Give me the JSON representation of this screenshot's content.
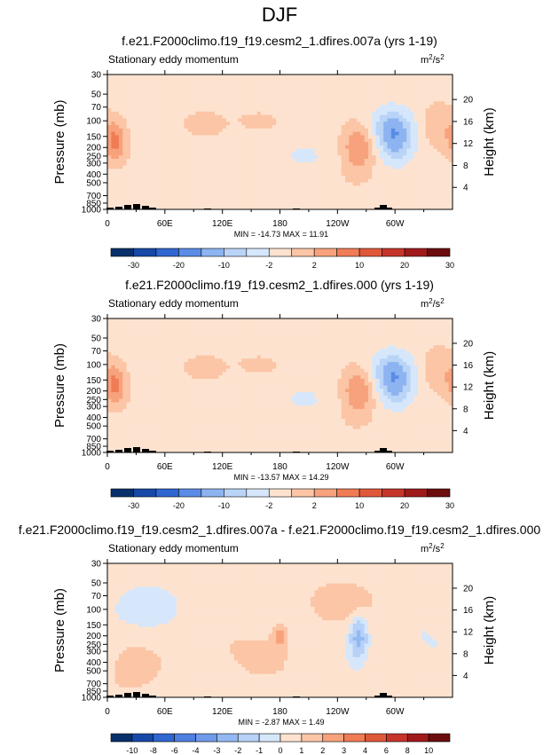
{
  "page_title": "DJF",
  "colorbars": {
    "main": {
      "labels": [
        "-30",
        "-20",
        "-10",
        "-2",
        "2",
        "10",
        "20",
        "30"
      ],
      "colors": [
        "#08306b",
        "#1748a8",
        "#2f66cf",
        "#5a8ce6",
        "#8db4f0",
        "#b9d4f6",
        "#d6e7fb",
        "#fde3cf",
        "#fbc5a6",
        "#f7a27c",
        "#ef7c55",
        "#e0583a",
        "#c6352a",
        "#a01a1c",
        "#6b0d0e"
      ]
    },
    "diff": {
      "labels": [
        "-10",
        "-8",
        "-6",
        "-4",
        "-3",
        "-2",
        "-1",
        "0",
        "1",
        "2",
        "3",
        "4",
        "6",
        "8",
        "10"
      ],
      "colors": [
        "#08306b",
        "#1748a8",
        "#2f66cf",
        "#4f7fe0",
        "#6f9aea",
        "#93b8f2",
        "#b7d1f7",
        "#d6e7fb",
        "#fde3cf",
        "#fbc5a6",
        "#f7a27c",
        "#ef7c55",
        "#e0583a",
        "#c6352a",
        "#a01a1c",
        "#6b0d0e"
      ]
    }
  },
  "chart_data": [
    {
      "type": "heatmap",
      "title": "f.e21.F2000climo.f19_f19.cesm2_1.dfires.007a (yrs 1-19)",
      "subtitle": "Stationary eddy momentum",
      "units": "m²/s²",
      "ylabel": "Pressure (mb)",
      "ylabel_right": "Height (km)",
      "x_ticks": [
        "0",
        "60E",
        "120E",
        "180",
        "120W",
        "60W"
      ],
      "y_ticks": [
        "30",
        "50",
        "70",
        "100",
        "150",
        "200",
        "250",
        "300",
        "400",
        "500",
        "700",
        "850",
        "1000"
      ],
      "y_ticks_right": [
        "20",
        "16",
        "12",
        "8",
        "4"
      ],
      "min_label": "MIN = -14.73",
      "max_label": "MAX =  11.91",
      "min": -14.73,
      "max": 11.91,
      "colorbar": "main"
    },
    {
      "type": "heatmap",
      "title": "f.e21.F2000climo.f19_f19.cesm2_1.dfires.000 (yrs 1-19)",
      "subtitle": "Stationary eddy momentum",
      "units": "m²/s²",
      "ylabel": "Pressure (mb)",
      "ylabel_right": "Height (km)",
      "x_ticks": [
        "0",
        "60E",
        "120E",
        "180",
        "120W",
        "60W"
      ],
      "y_ticks": [
        "30",
        "50",
        "70",
        "100",
        "150",
        "200",
        "250",
        "300",
        "400",
        "500",
        "700",
        "850",
        "1000"
      ],
      "y_ticks_right": [
        "20",
        "16",
        "12",
        "8",
        "4"
      ],
      "min_label": "MIN = -13.57",
      "max_label": "MAX =  14.29",
      "min": -13.57,
      "max": 14.29,
      "colorbar": "main"
    },
    {
      "type": "heatmap",
      "title": "f.e21.F2000climo.f19_f19.cesm2_1.dfires.007a - f.e21.F2000climo.f19_f19.cesm2_1.dfires.000",
      "subtitle": "Stationary eddy momentum",
      "units": "m²/s²",
      "ylabel": "Pressure (mb)",
      "ylabel_right": "Height (km)",
      "x_ticks": [
        "0",
        "60E",
        "120E",
        "180",
        "120W",
        "60W"
      ],
      "y_ticks": [
        "30",
        "50",
        "70",
        "100",
        "150",
        "200",
        "250",
        "300",
        "400",
        "500",
        "700",
        "850",
        "1000"
      ],
      "y_ticks_right": [
        "20",
        "16",
        "12",
        "8",
        "4"
      ],
      "min_label": "MIN = -2.87",
      "max_label": "MAX =  1.49",
      "min": -2.87,
      "max": 1.49,
      "colorbar": "diff"
    }
  ]
}
